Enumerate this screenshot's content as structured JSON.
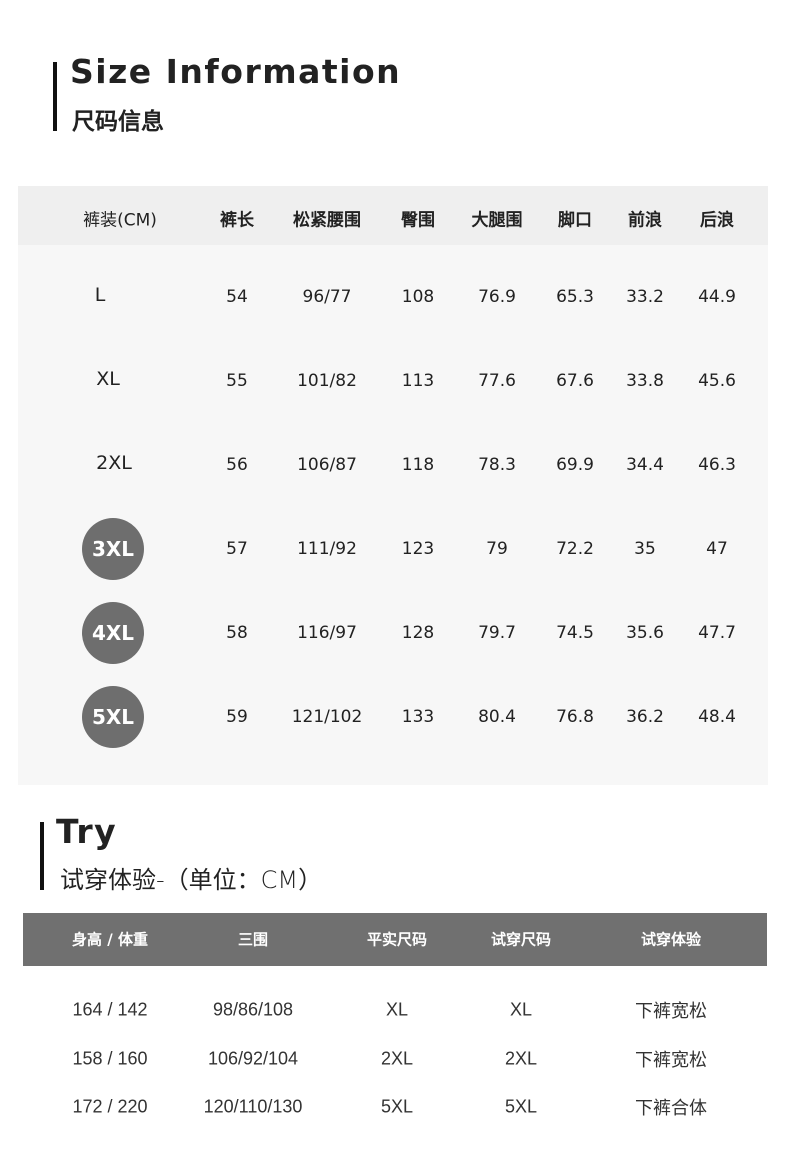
{
  "size_section": {
    "title_en": "Size Information",
    "title_cn": "尺码信息",
    "headers": [
      "裤装(CM)",
      "裤长",
      "松紧腰围",
      "臀围",
      "大腿围",
      "脚口",
      "前浪",
      "后浪"
    ],
    "rows": [
      {
        "size": "L",
        "highlight": false,
        "values": [
          "54",
          "96/77",
          "108",
          "76.9",
          "65.3",
          "33.2",
          "44.9"
        ]
      },
      {
        "size": "XL",
        "highlight": false,
        "values": [
          "55",
          "101/82",
          "113",
          "77.6",
          "67.6",
          "33.8",
          "45.6"
        ]
      },
      {
        "size": "2XL",
        "highlight": false,
        "values": [
          "56",
          "106/87",
          "118",
          "78.3",
          "69.9",
          "34.4",
          "46.3"
        ]
      },
      {
        "size": "3XL",
        "highlight": true,
        "values": [
          "57",
          "111/92",
          "123",
          "79",
          "72.2",
          "35",
          "47"
        ]
      },
      {
        "size": "4XL",
        "highlight": true,
        "values": [
          "58",
          "116/97",
          "128",
          "79.7",
          "74.5",
          "35.6",
          "47.7"
        ]
      },
      {
        "size": "5XL",
        "highlight": true,
        "values": [
          "59",
          "121/102",
          "133",
          "80.4",
          "76.8",
          "36.2",
          "48.4"
        ]
      }
    ]
  },
  "try_section": {
    "title_en": "Try",
    "subtitle_cn": "试穿体验-（单位：CM）",
    "headers": [
      "身高 / 体重",
      "三围",
      "平实尺码",
      "试穿尺码",
      "试穿体验"
    ],
    "rows": [
      [
        "164 / 142",
        "98/86/108",
        "XL",
        "XL",
        "下裤宽松"
      ],
      [
        "158 / 160",
        "106/92/104",
        "2XL",
        "2XL",
        "下裤宽松"
      ],
      [
        "172 / 220",
        "120/110/130",
        "5XL",
        "5XL",
        "下裤合体"
      ]
    ]
  },
  "colors": {
    "header_band": "#707070",
    "size_circle": "#6e6e6e",
    "table_bg": "#f7f7f7"
  }
}
